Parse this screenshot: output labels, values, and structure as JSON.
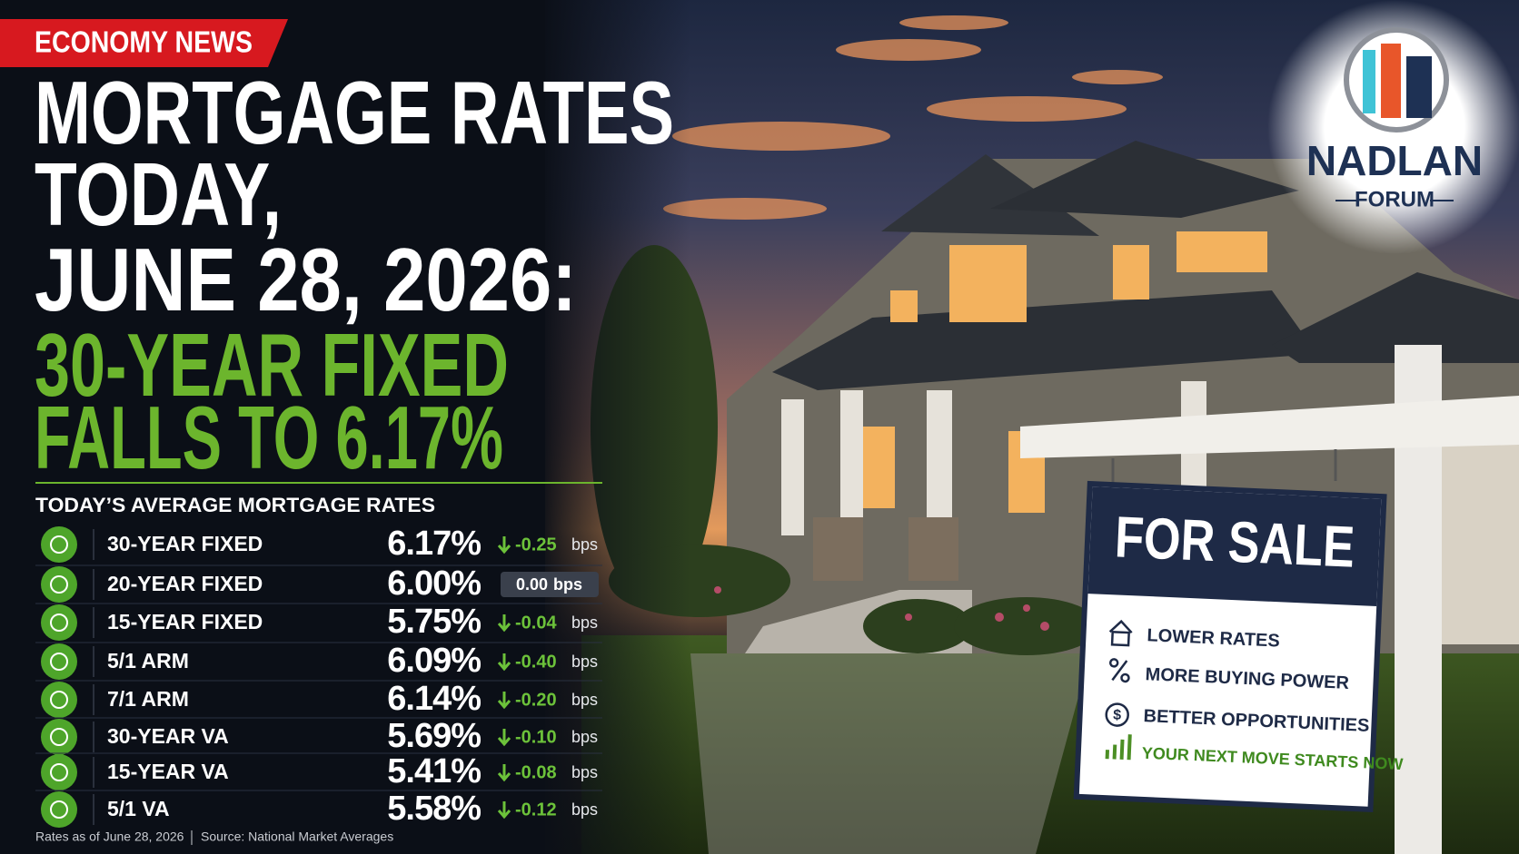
{
  "header": {
    "badge": "ECONOMY NEWS",
    "title_lines": [
      "MORTGAGE RATES",
      "TODAY,",
      "JUNE 28, 2026:"
    ],
    "headline_lines": [
      "30-YEAR FIXED",
      "FALLS TO 6.17%"
    ]
  },
  "table": {
    "title": "TODAY’S AVERAGE MORTGAGE RATES",
    "rows": [
      {
        "name": "30-YEAR FIXED",
        "rate": "6.17%",
        "change": "-0.25",
        "unit": "bps"
      },
      {
        "name": "20-YEAR FIXED",
        "rate": "6.00%",
        "change": "0.00",
        "unit": "bps"
      },
      {
        "name": "15-YEAR FIXED",
        "rate": "5.75%",
        "change": "-0.04",
        "unit": "bps"
      },
      {
        "name": "5/1 ARM",
        "rate": "6.09%",
        "change": "-0.40",
        "unit": "bps"
      },
      {
        "name": "7/1 ARM",
        "rate": "6.14%",
        "change": "-0.20",
        "unit": "bps"
      },
      {
        "name": "30-YEAR VA",
        "rate": "5.69%",
        "change": "-0.10",
        "unit": "bps"
      },
      {
        "name": "15-YEAR VA",
        "rate": "5.41%",
        "change": "-0.08",
        "unit": "bps"
      },
      {
        "name": "5/1 VA",
        "rate": "5.58%",
        "change": "-0.12",
        "unit": "bps"
      }
    ]
  },
  "footer": {
    "date": "Rates as of June 28, 2026",
    "source": "Source: National Market Averages"
  },
  "logo": {
    "name": "NADLAN",
    "sub": "FORUM"
  },
  "sign": {
    "title": "FOR SALE",
    "items": [
      "LOWER RATES",
      "MORE BUYING POWER",
      "BETTER OPPORTUNITIES",
      "YOUR NEXT MOVE STARTS NOW"
    ]
  }
}
